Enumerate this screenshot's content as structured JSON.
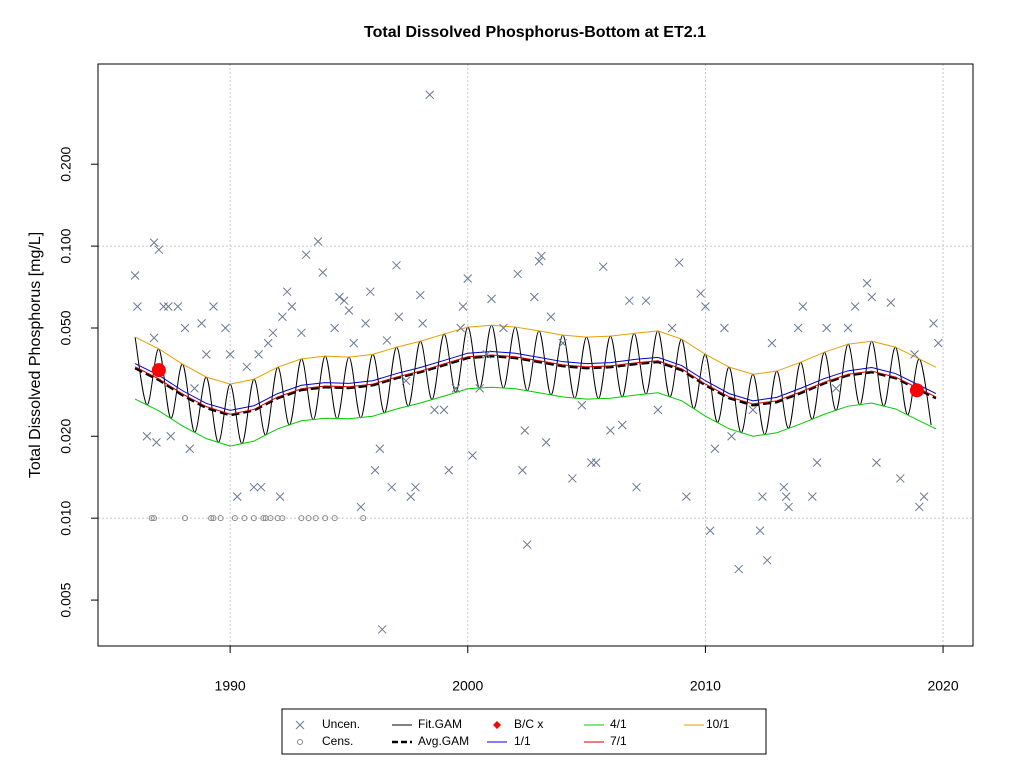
{
  "chart_data": {
    "type": "line",
    "title": "Total Dissolved Phosphorus-Bottom at ET2.1",
    "y_label": "Total Dissolved Phosphorus [mg/L]",
    "log_y": true,
    "grid": true,
    "xlim": [
      1984.44,
      2021.26
    ],
    "ylim": [
      0.00339,
      0.467
    ],
    "xticks": [
      1990,
      2000,
      2010,
      2020
    ],
    "yticks": [
      {
        "value": 0.005,
        "label": "0.005"
      },
      {
        "value": 0.01,
        "label": "0.010"
      },
      {
        "value": 0.02,
        "label": "0.020"
      },
      {
        "value": 0.05,
        "label": "0.050"
      },
      {
        "value": 0.1,
        "label": "0.100"
      },
      {
        "value": 0.2,
        "label": "0.200"
      }
    ],
    "ygrid": [
      0.01,
      0.1
    ],
    "legend": "bottom",
    "series": [
      {
        "name": "Uncen.",
        "type": "scatter",
        "marker": "x",
        "color": "#6b7894",
        "x": [
          1986.0,
          1986.1,
          1986.5,
          1986.8,
          1987.0,
          1986.8,
          1987.2,
          1987.4,
          1987.8,
          1986.9,
          1987.5,
          1988.1,
          1988.3,
          1988.5,
          1988.8,
          1989.3,
          1989.0,
          1989.8,
          1990.0,
          1990.3,
          1990.7,
          1991.0,
          1991.3,
          1991.2,
          1991.6,
          1991.8,
          1992.1,
          1992.2,
          1992.4,
          1992.6,
          1993.0,
          1993.2,
          1993.7,
          1993.9,
          1994.4,
          1994.6,
          1994.8,
          1995.0,
          1995.2,
          1995.5,
          1995.7,
          1995.9,
          1996.1,
          1996.3,
          1996.4,
          1996.6,
          1996.8,
          1997.0,
          1997.1,
          1997.4,
          1997.6,
          1997.8,
          1998.0,
          1998.1,
          1998.4,
          1998.6,
          1999.0,
          1999.2,
          1999.5,
          1999.7,
          1999.8,
          2000.0,
          2000.2,
          2000.5,
          2000.8,
          2001.0,
          2001.5,
          2002.1,
          2002.3,
          2002.4,
          2002.5,
          2002.8,
          2003.0,
          2003.1,
          2003.3,
          2003.5,
          2004.0,
          2004.4,
          2004.8,
          2005.2,
          2005.4,
          2005.7,
          2006.0,
          2006.5,
          2006.8,
          2007.1,
          2007.5,
          2008.0,
          2008.6,
          2008.9,
          2009.2,
          2009.8,
          2010.0,
          2010.2,
          2010.4,
          2010.8,
          2011.1,
          2011.4,
          2012.0,
          2012.3,
          2012.4,
          2012.6,
          2012.8,
          2013.3,
          2013.4,
          2013.5,
          2013.9,
          2014.1,
          2014.5,
          2014.7,
          2015.1,
          2015.5,
          2016.0,
          2016.3,
          2016.8,
          2017.0,
          2017.2,
          2017.8,
          2018.2,
          2018.8,
          2019.0,
          2019.2,
          2019.6,
          2019.8
        ],
        "values": [
          0.078,
          0.06,
          0.02,
          0.103,
          0.097,
          0.046,
          0.06,
          0.06,
          0.06,
          0.019,
          0.02,
          0.05,
          0.018,
          0.03,
          0.052,
          0.06,
          0.04,
          0.05,
          0.04,
          0.012,
          0.036,
          0.013,
          0.013,
          0.04,
          0.044,
          0.048,
          0.012,
          0.055,
          0.068,
          0.06,
          0.048,
          0.093,
          0.104,
          0.08,
          0.05,
          0.065,
          0.063,
          0.058,
          0.044,
          0.011,
          0.052,
          0.068,
          0.015,
          0.018,
          0.0039,
          0.045,
          0.013,
          0.085,
          0.055,
          0.032,
          0.012,
          0.013,
          0.066,
          0.052,
          0.36,
          0.025,
          0.025,
          0.015,
          0.03,
          0.05,
          0.06,
          0.076,
          0.017,
          0.03,
          0.04,
          0.064,
          0.05,
          0.079,
          0.015,
          0.021,
          0.008,
          0.065,
          0.088,
          0.092,
          0.019,
          0.055,
          0.044,
          0.014,
          0.026,
          0.016,
          0.016,
          0.084,
          0.021,
          0.022,
          0.063,
          0.013,
          0.063,
          0.025,
          0.05,
          0.087,
          0.012,
          0.067,
          0.06,
          0.009,
          0.018,
          0.05,
          0.02,
          0.0065,
          0.025,
          0.009,
          0.012,
          0.007,
          0.044,
          0.013,
          0.012,
          0.011,
          0.05,
          0.06,
          0.012,
          0.016,
          0.05,
          0.03,
          0.05,
          0.06,
          0.073,
          0.065,
          0.016,
          0.062,
          0.014,
          0.04,
          0.011,
          0.012,
          0.052,
          0.044
        ]
      },
      {
        "name": "Cens.",
        "type": "scatter",
        "marker": "o",
        "color": "#8a8a8a",
        "x": [
          1986.7,
          1986.8,
          1988.1,
          1989.2,
          1989.3,
          1989.6,
          1990.2,
          1990.6,
          1991.0,
          1991.4,
          1991.5,
          1991.7,
          1992.0,
          1992.2,
          1993.0,
          1993.3,
          1993.6,
          1994.0,
          1994.4,
          1995.6
        ],
        "values": [
          0.01,
          0.01,
          0.01,
          0.01,
          0.01,
          0.01,
          0.01,
          0.01,
          0.01,
          0.01,
          0.01,
          0.01,
          0.01,
          0.01,
          0.01,
          0.01,
          0.01,
          0.01,
          0.01,
          0.01
        ]
      },
      {
        "name": "Fit.GAM",
        "type": "line",
        "smooth": true,
        "color": "#000000",
        "width": 1,
        "x": [
          1986,
          1986.5,
          1987,
          1987.5,
          1988,
          1988.5,
          1989,
          1989.5,
          1990,
          1990.5,
          1991,
          1991.5,
          1992,
          1992.5,
          1993,
          1993.5,
          1994,
          1994.5,
          1995,
          1995.5,
          1996,
          1996.5,
          1997,
          1997.5,
          1998,
          1998.5,
          1999,
          1999.5,
          2000,
          2000.5,
          2001,
          2001.5,
          2002,
          2002.5,
          2003,
          2003.5,
          2004,
          2004.5,
          2005,
          2005.5,
          2006,
          2006.5,
          2007,
          2007.5,
          2008,
          2008.5,
          2009,
          2009.5,
          2010,
          2010.5,
          2011,
          2011.5,
          2012,
          2012.5,
          2013,
          2013.5,
          2014,
          2014.5,
          2015,
          2015.5,
          2016,
          2016.5,
          2017,
          2017.5,
          2018,
          2018.5,
          2019,
          2019.5
        ],
        "values": [
          0.0463,
          0.0261,
          0.0419,
          0.0233,
          0.0368,
          0.0207,
          0.033,
          0.019,
          0.0311,
          0.0188,
          0.0324,
          0.0202,
          0.0359,
          0.022,
          0.0385,
          0.023,
          0.0394,
          0.0232,
          0.0391,
          0.0234,
          0.04,
          0.0244,
          0.0425,
          0.0258,
          0.0447,
          0.0273,
          0.0475,
          0.029,
          0.0504,
          0.0301,
          0.0512,
          0.0301,
          0.0504,
          0.0294,
          0.0488,
          0.0284,
          0.0471,
          0.0276,
          0.0463,
          0.0275,
          0.0467,
          0.0279,
          0.0478,
          0.0286,
          0.0488,
          0.0279,
          0.0455,
          0.0253,
          0.04,
          0.0225,
          0.0359,
          0.0206,
          0.0338,
          0.0203,
          0.0347,
          0.0214,
          0.0374,
          0.0231,
          0.0407,
          0.0249,
          0.0436,
          0.0261,
          0.0447,
          0.0258,
          0.0425,
          0.024,
          0.0385,
          0.022
        ]
      },
      {
        "name": "Avg.GAM",
        "type": "line",
        "dashed": true,
        "color": "#000000",
        "width": 2.5,
        "x": [
          1986,
          1987,
          1988,
          1989,
          1990,
          1991,
          1992,
          1993,
          1994,
          1995,
          1996,
          1997,
          1998,
          1999,
          2000,
          2001,
          2002,
          2003,
          2004,
          2005,
          2006,
          2007,
          2008,
          2009,
          2010,
          2011,
          2012,
          2013,
          2014,
          2015,
          2016,
          2017,
          2018,
          2019,
          2019.7
        ],
        "values": [
          0.0356,
          0.0322,
          0.0283,
          0.0254,
          0.0239,
          0.0249,
          0.0276,
          0.0296,
          0.0303,
          0.0301,
          0.0308,
          0.0327,
          0.0344,
          0.0365,
          0.0388,
          0.0394,
          0.0388,
          0.0375,
          0.0362,
          0.0356,
          0.0359,
          0.0368,
          0.0375,
          0.035,
          0.0308,
          0.0276,
          0.026,
          0.0267,
          0.0288,
          0.0313,
          0.0335,
          0.0344,
          0.0327,
          0.0296,
          0.0276
        ]
      },
      {
        "name": "B/C x",
        "type": "scatter",
        "marker": "dot",
        "color": "#ff0000",
        "x": [
          1987.0,
          2018.9
        ],
        "values": [
          0.035,
          0.0295
        ]
      },
      {
        "name": "1/1",
        "type": "line",
        "color": "#0000cc",
        "width": 1,
        "x": [
          1986,
          1987,
          1988,
          1989,
          1990,
          1991,
          1992,
          1993,
          1994,
          1995,
          1996,
          1997,
          1998,
          1999,
          2000,
          2001,
          2002,
          2003,
          2004,
          2005,
          2006,
          2007,
          2008,
          2009,
          2010,
          2011,
          2012,
          2013,
          2014,
          2015,
          2016,
          2017,
          2018,
          2019,
          2019.7
        ],
        "values": [
          0.037,
          0.0335,
          0.0294,
          0.0264,
          0.0249,
          0.0259,
          0.0287,
          0.0308,
          0.0315,
          0.0313,
          0.032,
          0.034,
          0.0358,
          0.038,
          0.0404,
          0.041,
          0.0404,
          0.039,
          0.0376,
          0.037,
          0.0373,
          0.0383,
          0.039,
          0.0364,
          0.032,
          0.0287,
          0.027,
          0.0278,
          0.03,
          0.0326,
          0.0348,
          0.0358,
          0.034,
          0.0308,
          0.0287
        ]
      },
      {
        "name": "4/1",
        "type": "line",
        "color": "#00cc00",
        "width": 1,
        "x": [
          1986,
          1987,
          1988,
          1989,
          1990,
          1991,
          1992,
          1993,
          1994,
          1995,
          1996,
          1997,
          1998,
          1999,
          2000,
          2001,
          2002,
          2003,
          2004,
          2005,
          2006,
          2007,
          2008,
          2009,
          2010,
          2011,
          2012,
          2013,
          2014,
          2015,
          2016,
          2017,
          2018,
          2019,
          2019.7
        ],
        "values": [
          0.0274,
          0.0248,
          0.0218,
          0.0196,
          0.0184,
          0.0192,
          0.0213,
          0.0228,
          0.0233,
          0.0232,
          0.0237,
          0.0252,
          0.0265,
          0.0281,
          0.0299,
          0.0303,
          0.0299,
          0.0289,
          0.0279,
          0.0274,
          0.0276,
          0.0283,
          0.0289,
          0.027,
          0.0237,
          0.0213,
          0.02,
          0.0206,
          0.0222,
          0.0241,
          0.0258,
          0.0265,
          0.0252,
          0.0228,
          0.0213
        ]
      },
      {
        "name": "7/1",
        "type": "line",
        "color": "#cc0000",
        "width": 1,
        "x": [
          1986,
          1987,
          1988,
          1989,
          1990,
          1991,
          1992,
          1993,
          1994,
          1995,
          1996,
          1997,
          1998,
          1999,
          2000,
          2001,
          2002,
          2003,
          2004,
          2005,
          2006,
          2007,
          2008,
          2009,
          2010,
          2011,
          2012,
          2013,
          2014,
          2015,
          2016,
          2017,
          2018,
          2019,
          2019.7
        ],
        "values": [
          0.036,
          0.0325,
          0.0286,
          0.0257,
          0.0241,
          0.0251,
          0.0279,
          0.0299,
          0.0306,
          0.0304,
          0.0311,
          0.033,
          0.0347,
          0.0369,
          0.0392,
          0.0398,
          0.0392,
          0.0379,
          0.0366,
          0.036,
          0.0363,
          0.0372,
          0.0379,
          0.0354,
          0.0311,
          0.0279,
          0.0263,
          0.027,
          0.0291,
          0.0316,
          0.0338,
          0.0347,
          0.033,
          0.0299,
          0.0279
        ]
      },
      {
        "name": "10/1",
        "type": "line",
        "color": "#e69f00",
        "width": 1,
        "x": [
          1986,
          1987,
          1988,
          1989,
          1990,
          1991,
          1992,
          1993,
          1994,
          1995,
          1996,
          1997,
          1998,
          1999,
          2000,
          2001,
          2002,
          2003,
          2004,
          2005,
          2006,
          2007,
          2008,
          2009,
          2010,
          2011,
          2012,
          2013,
          2014,
          2015,
          2016,
          2017,
          2018,
          2019,
          2019.7
        ],
        "values": [
          0.0463,
          0.0419,
          0.0368,
          0.033,
          0.0311,
          0.0324,
          0.0359,
          0.0385,
          0.0394,
          0.0391,
          0.04,
          0.0425,
          0.0447,
          0.0475,
          0.0504,
          0.0512,
          0.0504,
          0.0488,
          0.0471,
          0.0463,
          0.0467,
          0.0478,
          0.0488,
          0.0455,
          0.04,
          0.0359,
          0.0338,
          0.0347,
          0.0374,
          0.0407,
          0.0436,
          0.0447,
          0.0425,
          0.0385,
          0.0359
        ]
      }
    ]
  }
}
